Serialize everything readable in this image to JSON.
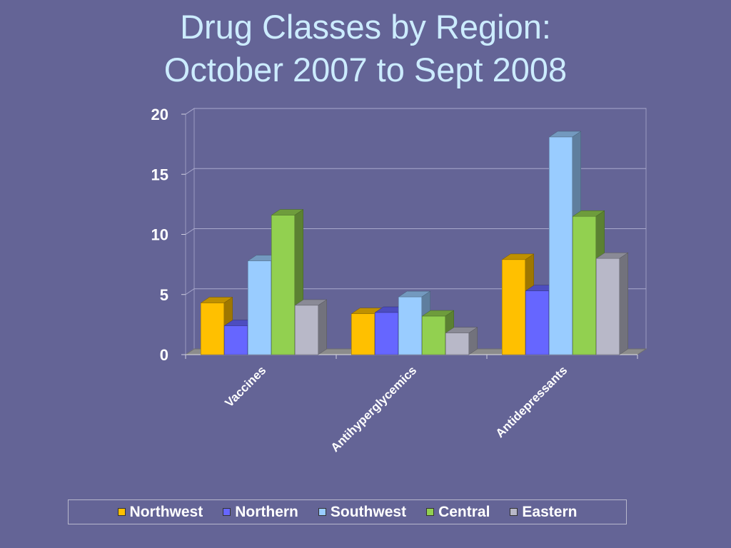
{
  "chart_data": {
    "type": "bar",
    "title": "Drug Classes by Region:",
    "subtitle": "October 2007 to Sept 2008",
    "categories": [
      "Vaccines",
      "Antihyperglycemics",
      "Antidepressants"
    ],
    "series": [
      {
        "name": "Northwest",
        "values": [
          4.3,
          3.4,
          7.9
        ],
        "color": "#ffc000"
      },
      {
        "name": "Northern",
        "values": [
          2.4,
          3.5,
          5.3
        ],
        "color": "#6666ff"
      },
      {
        "name": "Southwest",
        "values": [
          7.8,
          4.8,
          18.1
        ],
        "color": "#99ccff"
      },
      {
        "name": "Central",
        "values": [
          11.6,
          3.2,
          11.5
        ],
        "color": "#92d050"
      },
      {
        "name": "Eastern",
        "values": [
          4.1,
          1.8,
          8.0
        ],
        "color": "#b8b8c8"
      }
    ],
    "yticks": [
      "0",
      "5",
      "10",
      "15",
      "20"
    ],
    "ylim": [
      0,
      20
    ],
    "grid": true,
    "legend_position": "bottom",
    "xlabel": "",
    "ylabel": ""
  }
}
